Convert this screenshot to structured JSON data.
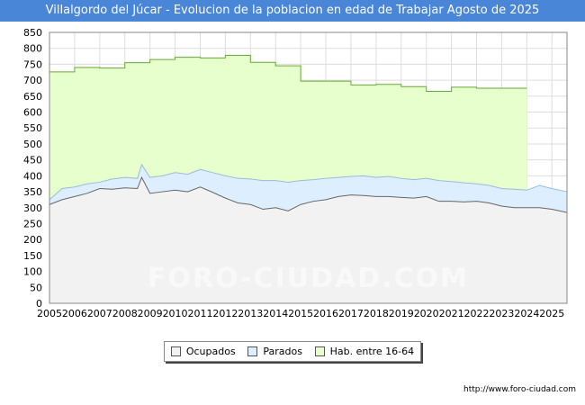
{
  "chart_data": {
    "type": "area",
    "title": "Villalgordo del Júcar - Evolucion de la poblacion en edad de Trabajar Agosto de 2025",
    "xlabel": "",
    "ylabel": "",
    "xlim": [
      2005,
      2025.6
    ],
    "ylim": [
      0,
      850
    ],
    "yticks": [
      0,
      50,
      100,
      150,
      200,
      250,
      300,
      350,
      400,
      450,
      500,
      550,
      600,
      650,
      700,
      750,
      800,
      850
    ],
    "xticks": [
      "2005",
      "2006",
      "2007",
      "2008",
      "2009",
      "2010",
      "2011",
      "2012",
      "2013",
      "2014",
      "2015",
      "2016",
      "2017",
      "2018",
      "2019",
      "2020",
      "2021",
      "2022",
      "2023",
      "2024",
      "2025"
    ],
    "grid": true,
    "legend_position": "bottom",
    "watermark": "FORO-CIUDAD.COM",
    "series": [
      {
        "name": "Ocupados",
        "color_fill": "#f2f2f2",
        "color_line": "#666666",
        "x": [
          2005,
          2005.5,
          2006,
          2006.5,
          2007,
          2007.5,
          2008,
          2008.5,
          2008.67,
          2009,
          2009.5,
          2010,
          2010.5,
          2011,
          2011.5,
          2012,
          2012.5,
          2013,
          2013.5,
          2014,
          2014.5,
          2015,
          2015.5,
          2016,
          2016.5,
          2017,
          2017.5,
          2018,
          2018.5,
          2019,
          2019.5,
          2020,
          2020.5,
          2021,
          2021.5,
          2022,
          2022.5,
          2023,
          2023.5,
          2024,
          2024.5,
          2025,
          2025.6
        ],
        "values": [
          310,
          325,
          335,
          345,
          360,
          358,
          362,
          360,
          395,
          345,
          350,
          355,
          350,
          365,
          348,
          330,
          315,
          310,
          295,
          300,
          290,
          310,
          320,
          325,
          335,
          340,
          338,
          335,
          335,
          332,
          330,
          335,
          320,
          320,
          318,
          320,
          315,
          305,
          300,
          300,
          300,
          295,
          285
        ]
      },
      {
        "name": "Parados",
        "color_fill": "#ddeeff",
        "color_line": "#99bbdd",
        "x": [
          2005,
          2005.5,
          2006,
          2006.5,
          2007,
          2007.5,
          2008,
          2008.5,
          2008.67,
          2009,
          2009.5,
          2010,
          2010.5,
          2011,
          2011.5,
          2012,
          2012.5,
          2013,
          2013.5,
          2014,
          2014.5,
          2015,
          2015.5,
          2016,
          2016.5,
          2017,
          2017.5,
          2018,
          2018.5,
          2019,
          2019.5,
          2020,
          2020.5,
          2021,
          2021.5,
          2022,
          2022.5,
          2023,
          2023.5,
          2024,
          2024.5,
          2025,
          2025.6
        ],
        "values": [
          325,
          360,
          365,
          375,
          380,
          390,
          395,
          392,
          435,
          395,
          400,
          410,
          405,
          420,
          410,
          400,
          392,
          390,
          385,
          385,
          380,
          385,
          388,
          392,
          395,
          398,
          400,
          395,
          398,
          392,
          388,
          392,
          385,
          382,
          378,
          375,
          370,
          360,
          358,
          355,
          370,
          360,
          350
        ]
      },
      {
        "name": "Hab. entre 16-64",
        "color_fill": "#e6ffcc",
        "color_line": "#66aa33",
        "x": [
          2005,
          2006,
          2006,
          2007,
          2007,
          2008,
          2008,
          2009,
          2009,
          2010,
          2010,
          2011,
          2011,
          2012,
          2012,
          2013,
          2013,
          2014,
          2014,
          2015,
          2015,
          2016,
          2016,
          2017,
          2017,
          2018,
          2018,
          2019,
          2019,
          2020,
          2020,
          2021,
          2021,
          2022,
          2022,
          2023,
          2023,
          2024
        ],
        "values": [
          726,
          726,
          740,
          740,
          738,
          738,
          755,
          755,
          765,
          765,
          772,
          772,
          770,
          770,
          778,
          778,
          756,
          756,
          745,
          745,
          697,
          697,
          697,
          697,
          685,
          685,
          687,
          687,
          680,
          680,
          665,
          665,
          678,
          678,
          675,
          675,
          675,
          675
        ]
      }
    ]
  },
  "legend": {
    "items": [
      {
        "label": "Ocupados",
        "color": "#f2f2f2"
      },
      {
        "label": "Parados",
        "color": "#ddeeff"
      },
      {
        "label": "Hab. entre 16-64",
        "color": "#e6ffcc"
      }
    ]
  },
  "footer": {
    "url": "http://www.foro-ciudad.com"
  }
}
